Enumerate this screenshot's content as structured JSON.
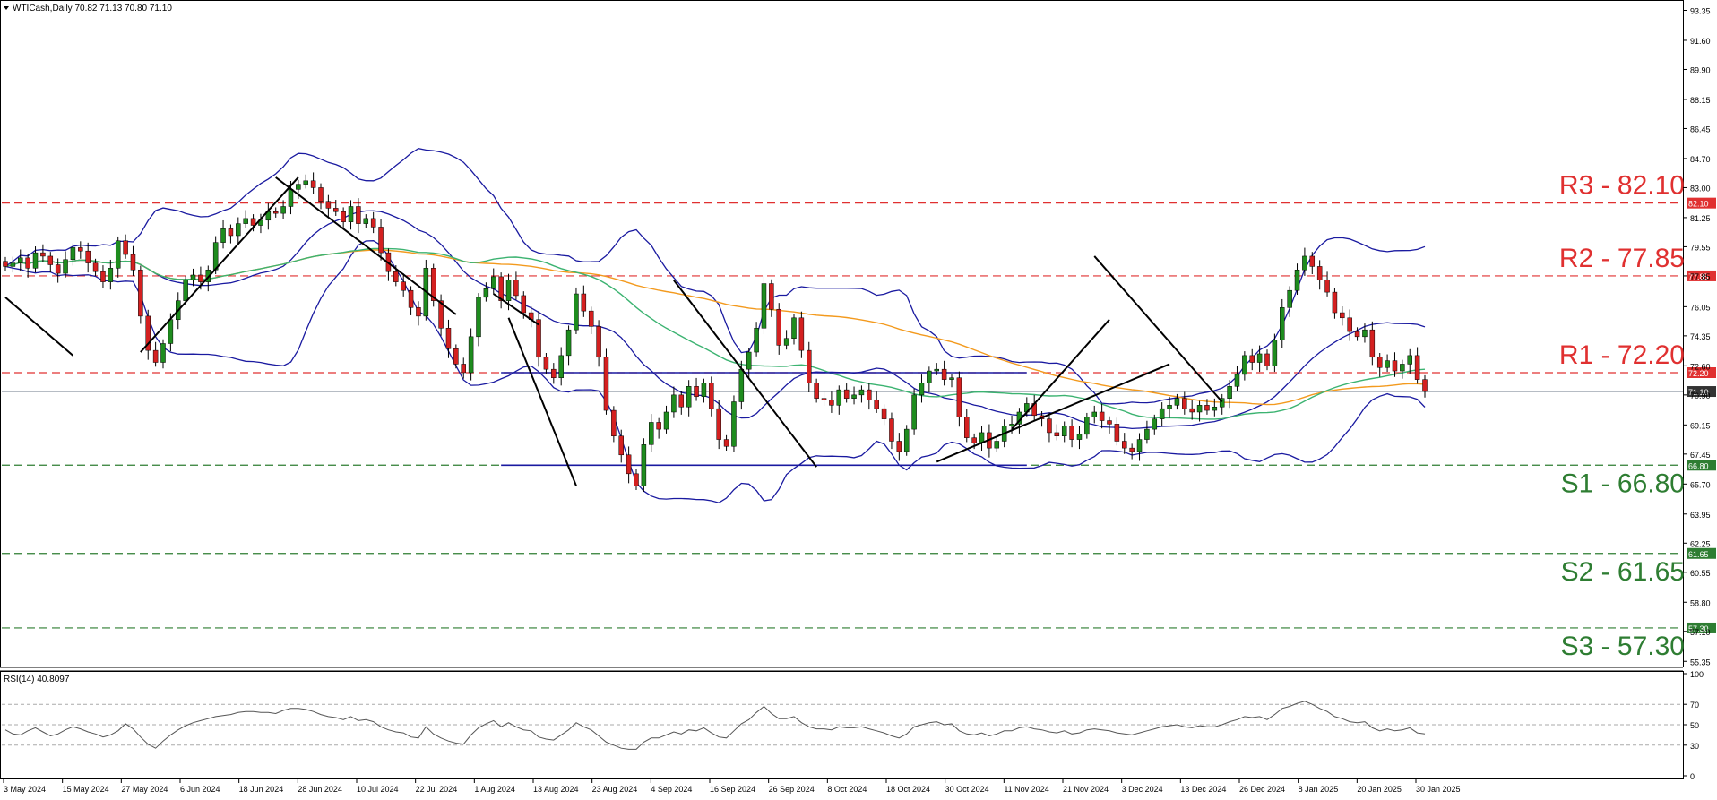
{
  "chart_info": {
    "symbol_line": "WTICash,Daily  70.82 71.13 70.80 71.10",
    "rsi_label": "RSI(14) 40.8097"
  },
  "colors": {
    "resistance": "#e03030",
    "support": "#2e7d32",
    "bollinger": "#1a1aa0",
    "ma_orange": "#f39a1e",
    "ma_green": "#3cb371",
    "bull": "#1e8c1e",
    "bear": "#d42020",
    "rsi_line": "#555555",
    "grid_dash": "#aaaaaa",
    "current_price": "#6d7a8a"
  },
  "chart_data": [
    {
      "type": "candlestick",
      "title": "WTICash,Daily",
      "ohlc_current": [
        70.82,
        71.13,
        70.8,
        71.1
      ],
      "ylim": [
        55.35,
        93.35
      ],
      "y_ticks": [
        "93.35",
        "91.60",
        "89.90",
        "88.15",
        "86.45",
        "84.70",
        "83.00",
        "81.25",
        "79.55",
        "77.85",
        "76.05",
        "74.35",
        "72.60",
        "70.90",
        "69.15",
        "67.45",
        "65.70",
        "63.95",
        "62.25",
        "60.55",
        "58.80",
        "57.10",
        "55.35"
      ],
      "x_tick_labels": [
        "3 May 2024",
        "15 May 2024",
        "27 May 2024",
        "6 Jun 2024",
        "18 Jun 2024",
        "28 Jun 2024",
        "10 Jul 2024",
        "22 Jul 2024",
        "1 Aug 2024",
        "13 Aug 2024",
        "23 Aug 2024",
        "4 Sep 2024",
        "16 Sep 2024",
        "26 Sep 2024",
        "8 Oct 2024",
        "18 Oct 2024",
        "30 Oct 2024",
        "11 Nov 2024",
        "21 Nov 2024",
        "3 Dec 2024",
        "13 Dec 2024",
        "26 Dec 2024",
        "8 Jan 2025",
        "20 Jan 2025",
        "30 Jan 2025"
      ],
      "levels": [
        {
          "label": "R3 - 82.10",
          "price": 82.1,
          "tag": "82.10",
          "kind": "resistance"
        },
        {
          "label": "R2 - 77.85",
          "price": 77.85,
          "tag": "77.85",
          "kind": "resistance"
        },
        {
          "label": "R1 - 72.20",
          "price": 72.2,
          "tag": "72.20",
          "kind": "resistance"
        },
        {
          "label": "S1 - 66.80",
          "price": 66.8,
          "tag": "66.80",
          "kind": "support"
        },
        {
          "label": "S2 - 61.65",
          "price": 61.65,
          "tag": "61.65",
          "kind": "support"
        },
        {
          "label": "S3 - 57.30",
          "price": 57.3,
          "tag": "57.30",
          "kind": "support"
        }
      ],
      "current_price": {
        "price": 71.1,
        "tag": "71.10"
      },
      "close_series": [
        78.4,
        78.6,
        78.9,
        78.3,
        79.2,
        79.0,
        78.5,
        78.0,
        78.8,
        79.5,
        79.3,
        78.6,
        78.1,
        77.5,
        78.3,
        79.9,
        79.1,
        78.2,
        75.5,
        73.5,
        72.8,
        73.9,
        75.3,
        76.4,
        77.6,
        77.9,
        77.5,
        78.2,
        79.8,
        80.6,
        80.2,
        80.9,
        81.2,
        80.8,
        81.1,
        81.6,
        81.5,
        81.9,
        82.9,
        83.2,
        83.4,
        83.0,
        82.2,
        81.8,
        81.6,
        81.0,
        81.9,
        80.9,
        81.2,
        80.7,
        79.2,
        78.1,
        77.5,
        77.0,
        76.0,
        75.5,
        78.3,
        76.4,
        74.8,
        73.6,
        72.7,
        72.2,
        74.3,
        76.6,
        77.1,
        77.8,
        76.4,
        77.6,
        76.7,
        75.7,
        75.3,
        73.1,
        72.4,
        71.9,
        73.2,
        74.7,
        76.8,
        75.8,
        74.9,
        73.1,
        70.0,
        68.5,
        67.4,
        66.3,
        65.6,
        68.0,
        69.3,
        68.9,
        69.9,
        70.9,
        70.2,
        71.4,
        70.8,
        71.6,
        70.1,
        68.3,
        67.9,
        70.5,
        72.4,
        73.4,
        74.8,
        77.4,
        75.9,
        73.8,
        74.2,
        75.4,
        73.5,
        71.6,
        70.7,
        70.6,
        70.3,
        71.2,
        70.7,
        70.9,
        71.2,
        70.6,
        70.1,
        69.5,
        68.2,
        67.6,
        68.9,
        70.9,
        71.6,
        72.3,
        72.4,
        71.8,
        71.9,
        69.6,
        68.4,
        68.1,
        68.7,
        67.8,
        68.2,
        69.1,
        69.2,
        69.9,
        70.4,
        69.7,
        69.5,
        68.7,
        68.5,
        69.1,
        68.3,
        68.6,
        69.6,
        69.9,
        69.4,
        69.2,
        68.2,
        67.8,
        67.6,
        68.3,
        68.9,
        69.5,
        70.1,
        70.3,
        70.7,
        70.1,
        69.9,
        70.3,
        70.0,
        70.2,
        70.7,
        71.4,
        72.1,
        73.2,
        72.8,
        73.3,
        72.6,
        74.1,
        76.0,
        77.0,
        78.2,
        79.0,
        78.4,
        77.6,
        76.9,
        75.7,
        75.4,
        74.6,
        74.3,
        74.7,
        73.1,
        72.5,
        72.9,
        72.3,
        72.7,
        73.2,
        71.8,
        71.1
      ]
    },
    {
      "type": "line",
      "title": "RSI(14) 40.8097",
      "ylim": [
        0,
        100
      ],
      "y_ticks": [
        "100",
        "70",
        "50",
        "30",
        "0"
      ],
      "guide_levels": [
        70,
        50,
        30
      ],
      "values": [
        45,
        41,
        40,
        44,
        47,
        43,
        39,
        41,
        45,
        48,
        46,
        43,
        41,
        38,
        40,
        44,
        51,
        46,
        38,
        31,
        27,
        34,
        40,
        45,
        49,
        52,
        54,
        56,
        58,
        59,
        60,
        62,
        63,
        63,
        62,
        62,
        61,
        64,
        66,
        66,
        65,
        63,
        60,
        58,
        57,
        55,
        58,
        54,
        55,
        53,
        48,
        45,
        43,
        42,
        38,
        37,
        48,
        41,
        37,
        34,
        32,
        31,
        40,
        47,
        51,
        54,
        48,
        52,
        48,
        45,
        44,
        38,
        36,
        35,
        40,
        45,
        52,
        48,
        45,
        39,
        33,
        30,
        27,
        26,
        26,
        33,
        37,
        37,
        40,
        43,
        41,
        45,
        44,
        47,
        42,
        38,
        37,
        44,
        51,
        55,
        62,
        68,
        61,
        56,
        56,
        58,
        52,
        48,
        46,
        46,
        45,
        48,
        47,
        47,
        48,
        46,
        44,
        42,
        39,
        37,
        41,
        48,
        50,
        52,
        53,
        50,
        51,
        44,
        41,
        40,
        42,
        39,
        41,
        44,
        44,
        47,
        48,
        46,
        45,
        43,
        42,
        44,
        41,
        42,
        45,
        46,
        45,
        44,
        42,
        41,
        40,
        42,
        44,
        46,
        48,
        49,
        50,
        48,
        47,
        49,
        48,
        48,
        50,
        53,
        55,
        58,
        57,
        58,
        55,
        60,
        66,
        68,
        71,
        73,
        70,
        66,
        63,
        58,
        56,
        53,
        52,
        53,
        47,
        44,
        46,
        44,
        45,
        47,
        42,
        41
      ]
    }
  ]
}
